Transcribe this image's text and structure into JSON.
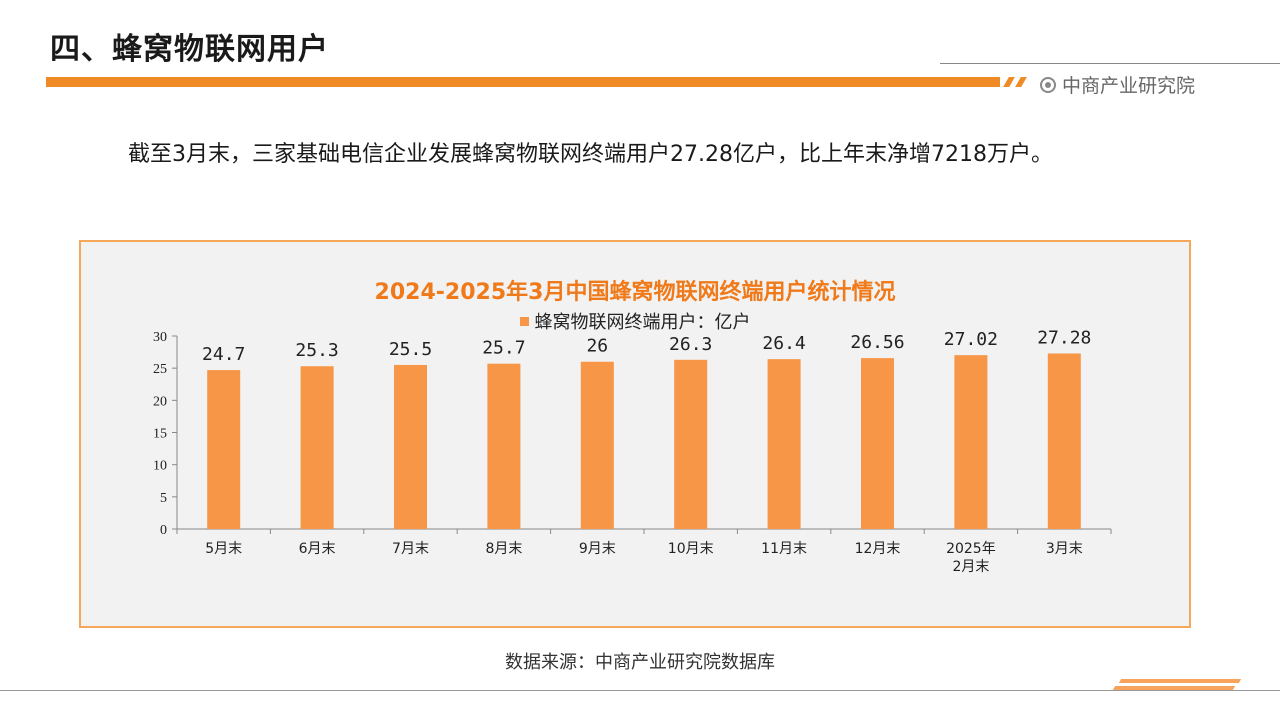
{
  "page": {
    "title": "四、蜂窝物联网用户",
    "brand": "中商产业研究院",
    "summary": "截至3月末，三家基础电信企业发展蜂窝物联网终端用户27.28亿户，比上年末净增7218万户。",
    "source": "数据来源：中商产业研究院数据库",
    "icons": [
      "brand-circle-icon"
    ]
  },
  "colors": {
    "accent": "#f08a24",
    "bar": "#f79646",
    "chart_bg": "#f2f2f2",
    "title": "#f07a1a"
  },
  "chart_data": {
    "type": "bar",
    "title": "2024-2025年3月中国蜂窝物联网终端用户统计情况",
    "legend": "蜂窝物联网终端用户：亿户",
    "legend_position": "top",
    "categories": [
      "5月末",
      "6月末",
      "7月末",
      "8月末",
      "9月末",
      "10月末",
      "11月末",
      "12月末",
      "2025年2月末",
      "3月末"
    ],
    "category_lines": [
      [
        "5月末"
      ],
      [
        "6月末"
      ],
      [
        "7月末"
      ],
      [
        "8月末"
      ],
      [
        "9月末"
      ],
      [
        "10月末"
      ],
      [
        "11月末"
      ],
      [
        "12月末"
      ],
      [
        "2025年",
        "2月末"
      ],
      [
        "3月末"
      ]
    ],
    "values": [
      24.7,
      25.3,
      25.5,
      25.7,
      26,
      26.3,
      26.4,
      26.56,
      27.02,
      27.28
    ],
    "labels": [
      "24.7",
      "25.3",
      "25.5",
      "25.7",
      "26",
      "26.3",
      "26.4",
      "26.56",
      "27.02",
      "27.28"
    ],
    "yticks": [
      "0",
      "5",
      "10",
      "15",
      "20",
      "25",
      "30"
    ],
    "ylim": [
      0,
      30
    ],
    "grid": false
  }
}
